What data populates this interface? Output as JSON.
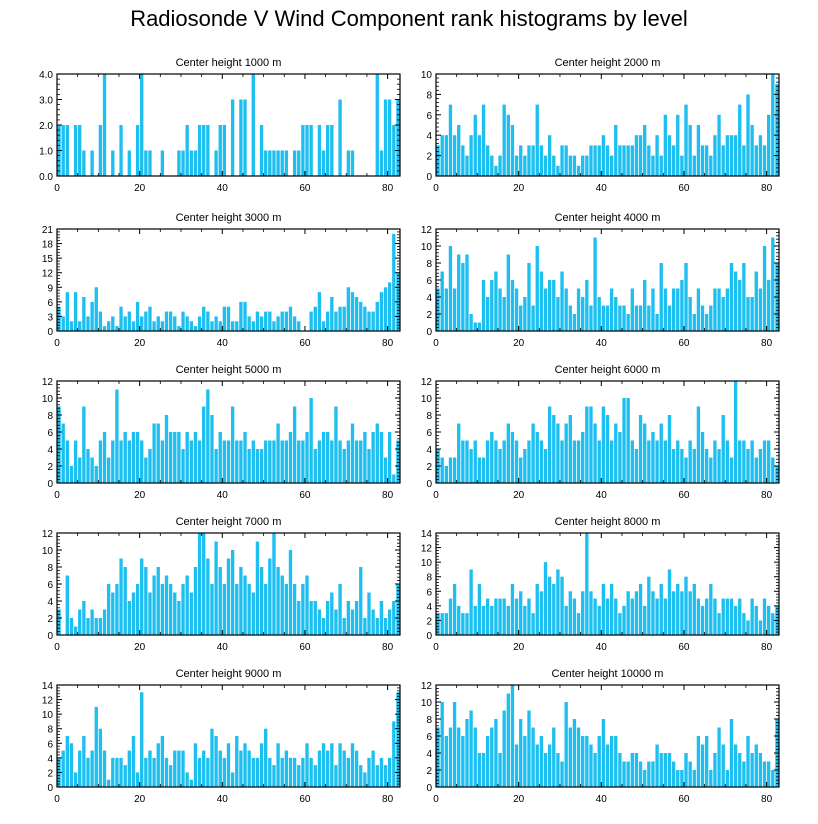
{
  "title": "Radiosonde V Wind Component rank histograms by level",
  "colors": {
    "bar": "#1CBFF0",
    "axis": "#000000",
    "background": "#ffffff"
  },
  "chart_data": [
    {
      "type": "bar",
      "title": "Center height 1000 m",
      "xlim": [
        0,
        83
      ],
      "xticks": [
        0,
        20,
        40,
        60,
        80
      ],
      "ylim": [
        0,
        4
      ],
      "yticks": [
        0,
        1,
        2,
        3,
        4
      ],
      "ytick_labels": [
        "0.0",
        "1.0",
        "2.0",
        "3.0",
        "4.0"
      ],
      "values": [
        2,
        2,
        2,
        0,
        2,
        2,
        1,
        0,
        1,
        0,
        2,
        4,
        0,
        1,
        0,
        2,
        0,
        1,
        0,
        2,
        4,
        1,
        1,
        0,
        0,
        1,
        0,
        0,
        0,
        1,
        1,
        2,
        1,
        1,
        2,
        2,
        2,
        0,
        1,
        2,
        2,
        0,
        3,
        0,
        3,
        3,
        0,
        4,
        0,
        2,
        1,
        1,
        1,
        1,
        1,
        1,
        0,
        1,
        1,
        2,
        2,
        2,
        0,
        2,
        1,
        2,
        2,
        0,
        3,
        0,
        1,
        1,
        0,
        0,
        0,
        0,
        0,
        4,
        1,
        3,
        3,
        2,
        3
      ]
    },
    {
      "type": "bar",
      "title": "Center height 2000 m",
      "xlim": [
        0,
        83
      ],
      "xticks": [
        0,
        20,
        40,
        60,
        80
      ],
      "ylim": [
        0,
        10
      ],
      "yticks": [
        0,
        2,
        4,
        6,
        8,
        10
      ],
      "ytick_labels": [
        "0",
        "2",
        "4",
        "6",
        "8",
        "10"
      ],
      "values": [
        3,
        4,
        4,
        7,
        4,
        5,
        3,
        2,
        4,
        6,
        4,
        7,
        3,
        2,
        1,
        2,
        7,
        6,
        5,
        2,
        3,
        2,
        3,
        3,
        7,
        3,
        2,
        4,
        2,
        1,
        3,
        3,
        2,
        2,
        1,
        2,
        2,
        3,
        3,
        3,
        4,
        3,
        2,
        5,
        3,
        3,
        3,
        3,
        4,
        4,
        5,
        3,
        2,
        4,
        2,
        6,
        4,
        3,
        6,
        2,
        7,
        5,
        2,
        5,
        3,
        3,
        2,
        4,
        6,
        3,
        4,
        4,
        4,
        7,
        3,
        8,
        5,
        3,
        4,
        3,
        6,
        10,
        9
      ]
    },
    {
      "type": "bar",
      "title": "Center height 3000 m",
      "xlim": [
        0,
        83
      ],
      "xticks": [
        0,
        20,
        40,
        60,
        80
      ],
      "ylim": [
        0,
        21
      ],
      "yticks": [
        0,
        3,
        6,
        9,
        12,
        15,
        18,
        21
      ],
      "ytick_labels": [
        "0",
        "3",
        "6",
        "9",
        "12",
        "15",
        "18",
        "21"
      ],
      "values": [
        5,
        3,
        8,
        2,
        8,
        2,
        7,
        3,
        6,
        9,
        4,
        1,
        2,
        3,
        1,
        5,
        3,
        4,
        2,
        6,
        3,
        4,
        5,
        2,
        3,
        2,
        4,
        4,
        3,
        1,
        4,
        3,
        2,
        1,
        3,
        5,
        4,
        2,
        3,
        2,
        5,
        5,
        2,
        2,
        6,
        6,
        3,
        2,
        4,
        3,
        4,
        4,
        2,
        3,
        4,
        4,
        5,
        3,
        2,
        0,
        0,
        4,
        5,
        8,
        2,
        4,
        7,
        4,
        5,
        5,
        9,
        8,
        7,
        6,
        5,
        4,
        4,
        6,
        8,
        9,
        10,
        20,
        12
      ]
    },
    {
      "type": "bar",
      "title": "Center height 4000 m",
      "xlim": [
        0,
        83
      ],
      "xticks": [
        0,
        20,
        40,
        60,
        80
      ],
      "ylim": [
        0,
        12
      ],
      "yticks": [
        0,
        2,
        4,
        6,
        8,
        10,
        12
      ],
      "ytick_labels": [
        "0",
        "2",
        "4",
        "6",
        "8",
        "10",
        "12"
      ],
      "values": [
        5,
        7,
        5,
        10,
        5,
        9,
        8,
        9,
        2,
        1,
        1,
        6,
        4,
        6,
        7,
        5,
        4,
        9,
        6,
        5,
        3,
        4,
        8,
        3,
        10,
        7,
        5,
        6,
        6,
        4,
        7,
        5,
        3,
        2,
        5,
        4,
        6,
        3,
        11,
        4,
        3,
        3,
        5,
        4,
        3,
        3,
        2,
        5,
        3,
        3,
        6,
        3,
        5,
        2,
        8,
        5,
        3,
        5,
        5,
        6,
        8,
        4,
        2,
        5,
        3,
        2,
        3,
        5,
        5,
        4,
        5,
        8,
        7,
        6,
        8,
        4,
        4,
        7,
        5,
        10,
        6,
        11,
        8
      ]
    },
    {
      "type": "bar",
      "title": "Center height 5000 m",
      "xlim": [
        0,
        83
      ],
      "xticks": [
        0,
        20,
        40,
        60,
        80
      ],
      "ylim": [
        0,
        12
      ],
      "yticks": [
        0,
        2,
        4,
        6,
        8,
        10,
        12
      ],
      "ytick_labels": [
        "0",
        "2",
        "4",
        "6",
        "8",
        "10",
        "12"
      ],
      "values": [
        9,
        7,
        5,
        2,
        5,
        3,
        9,
        4,
        3,
        2,
        5,
        6,
        3,
        5,
        11,
        5,
        6,
        5,
        6,
        6,
        5,
        3,
        4,
        7,
        7,
        5,
        8,
        6,
        6,
        6,
        4,
        6,
        5,
        6,
        5,
        9,
        11,
        8,
        4,
        6,
        5,
        5,
        9,
        5,
        5,
        6,
        4,
        5,
        4,
        4,
        5,
        5,
        5,
        7,
        5,
        5,
        6,
        9,
        5,
        5,
        6,
        10,
        4,
        5,
        6,
        6,
        5,
        9,
        5,
        4,
        5,
        7,
        5,
        5,
        6,
        4,
        6,
        7,
        6,
        3,
        6,
        1,
        5
      ]
    },
    {
      "type": "bar",
      "title": "Center height 6000 m",
      "xlim": [
        0,
        83
      ],
      "xticks": [
        0,
        20,
        40,
        60,
        80
      ],
      "ylim": [
        0,
        12
      ],
      "yticks": [
        0,
        2,
        4,
        6,
        8,
        10,
        12
      ],
      "ytick_labels": [
        "0",
        "2",
        "4",
        "6",
        "8",
        "10",
        "12"
      ],
      "values": [
        4,
        3,
        2,
        3,
        3,
        7,
        5,
        5,
        4,
        5,
        3,
        3,
        5,
        6,
        5,
        4,
        5,
        7,
        6,
        5,
        3,
        4,
        5,
        7,
        6,
        5,
        4,
        9,
        8,
        7,
        5,
        7,
        8,
        5,
        5,
        6,
        9,
        9,
        7,
        5,
        9,
        8,
        5,
        7,
        6,
        10,
        10,
        5,
        4,
        8,
        7,
        5,
        6,
        5,
        7,
        5,
        8,
        4,
        5,
        4,
        3,
        5,
        4,
        9,
        6,
        4,
        3,
        5,
        4,
        8,
        5,
        3,
        12,
        5,
        5,
        4,
        5,
        3,
        4,
        5,
        5,
        3,
        2
      ]
    },
    {
      "type": "bar",
      "title": "Center height 7000 m",
      "xlim": [
        0,
        83
      ],
      "xticks": [
        0,
        20,
        40,
        60,
        80
      ],
      "ylim": [
        0,
        12
      ],
      "yticks": [
        0,
        2,
        4,
        6,
        8,
        10,
        12
      ],
      "ytick_labels": [
        "0",
        "2",
        "4",
        "6",
        "8",
        "10",
        "12"
      ],
      "values": [
        3,
        0,
        7,
        2,
        1,
        3,
        4,
        2,
        3,
        2,
        2,
        3,
        6,
        5,
        6,
        9,
        8,
        4,
        5,
        6,
        9,
        8,
        5,
        7,
        8,
        6,
        7,
        6,
        5,
        4,
        6,
        7,
        5,
        8,
        12,
        12,
        9,
        6,
        11,
        8,
        6,
        9,
        10,
        6,
        8,
        7,
        6,
        5,
        11,
        8,
        6,
        9,
        12,
        8,
        7,
        6,
        10,
        6,
        4,
        6,
        7,
        4,
        4,
        3,
        2,
        4,
        5,
        3,
        6,
        2,
        4,
        3,
        4,
        8,
        2,
        5,
        3,
        2,
        4,
        2,
        3,
        4,
        6
      ]
    },
    {
      "type": "bar",
      "title": "Center height 8000 m",
      "xlim": [
        0,
        83
      ],
      "xticks": [
        0,
        20,
        40,
        60,
        80
      ],
      "ylim": [
        0,
        14
      ],
      "yticks": [
        0,
        2,
        4,
        6,
        8,
        10,
        12,
        14
      ],
      "ytick_labels": [
        "0",
        "2",
        "4",
        "6",
        "8",
        "10",
        "12",
        "14"
      ],
      "values": [
        3,
        3,
        3,
        5,
        7,
        4,
        3,
        3,
        9,
        4,
        7,
        4,
        5,
        4,
        5,
        5,
        5,
        4,
        7,
        5,
        6,
        4,
        5,
        3,
        7,
        6,
        10,
        8,
        7,
        9,
        8,
        4,
        6,
        5,
        3,
        6,
        14,
        6,
        5,
        4,
        7,
        5,
        7,
        5,
        3,
        4,
        6,
        5,
        6,
        7,
        4,
        8,
        6,
        5,
        7,
        5,
        9,
        6,
        7,
        6,
        8,
        6,
        7,
        5,
        4,
        5,
        7,
        5,
        3,
        5,
        5,
        5,
        4,
        5,
        3,
        2,
        5,
        4,
        2,
        5,
        4,
        3,
        4
      ]
    },
    {
      "type": "bar",
      "title": "Center height 9000 m",
      "xlim": [
        0,
        83
      ],
      "xticks": [
        0,
        20,
        40,
        60,
        80
      ],
      "ylim": [
        0,
        14
      ],
      "yticks": [
        0,
        2,
        4,
        6,
        8,
        10,
        12,
        14
      ],
      "ytick_labels": [
        "0",
        "2",
        "4",
        "6",
        "8",
        "10",
        "12",
        "14"
      ],
      "values": [
        4,
        5,
        7,
        6,
        2,
        5,
        7,
        4,
        5,
        11,
        8,
        5,
        1,
        4,
        4,
        4,
        3,
        5,
        7,
        2,
        13,
        4,
        5,
        4,
        6,
        7,
        4,
        3,
        5,
        5,
        5,
        2,
        1,
        6,
        4,
        5,
        4,
        8,
        7,
        5,
        4,
        6,
        2,
        7,
        5,
        6,
        5,
        4,
        4,
        6,
        8,
        4,
        3,
        6,
        4,
        5,
        4,
        4,
        3,
        4,
        6,
        4,
        3,
        5,
        6,
        5,
        6,
        3,
        6,
        5,
        4,
        6,
        5,
        3,
        2,
        4,
        5,
        3,
        4,
        3,
        4,
        9,
        13
      ]
    },
    {
      "type": "bar",
      "title": "Center height 10000 m",
      "xlim": [
        0,
        83
      ],
      "xticks": [
        0,
        20,
        40,
        60,
        80
      ],
      "ylim": [
        0,
        12
      ],
      "yticks": [
        0,
        2,
        4,
        6,
        8,
        10,
        12
      ],
      "ytick_labels": [
        "0",
        "2",
        "4",
        "6",
        "8",
        "10",
        "12"
      ],
      "values": [
        7,
        10,
        6,
        7,
        10,
        7,
        6,
        8,
        9,
        7,
        4,
        4,
        6,
        7,
        8,
        4,
        9,
        11,
        12,
        5,
        8,
        6,
        9,
        7,
        5,
        6,
        4,
        5,
        7,
        4,
        3,
        10,
        7,
        8,
        7,
        6,
        6,
        5,
        4,
        6,
        8,
        5,
        6,
        6,
        4,
        3,
        3,
        4,
        4,
        3,
        2,
        3,
        3,
        5,
        4,
        4,
        4,
        3,
        2,
        2,
        4,
        3,
        2,
        6,
        5,
        6,
        2,
        4,
        7,
        5,
        2,
        8,
        5,
        4,
        3,
        6,
        4,
        5,
        4,
        3,
        3,
        2,
        8
      ]
    }
  ]
}
